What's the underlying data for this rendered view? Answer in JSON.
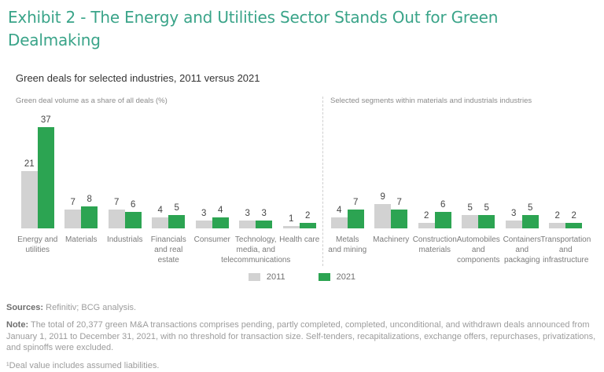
{
  "header": {
    "title": "Exhibit 2 - The Energy and Utilities Sector Stands Out for Green Dealmaking",
    "subtitle": "Green deals for selected industries, 2011 versus 2021"
  },
  "chart_data": {
    "type": "bar",
    "title": "Green deals for selected industries, 2011 versus 2021",
    "legend": [
      "2011",
      "2021"
    ],
    "colors": {
      "2011": "#d2d2d2",
      "2021": "#2ca452"
    },
    "ylim": [
      0,
      40
    ],
    "grid": false,
    "legend_position": "bottom-center",
    "panels": [
      {
        "label": "Green deal volume as a share of all deals (%)",
        "categories": [
          "Energy and utilities",
          "Materials",
          "Industrials",
          "Financials and real estate",
          "Consumer",
          "Technology, media, and telecommunications",
          "Health care"
        ],
        "category_label_lines": [
          "Energy and\nutilities",
          "Materials",
          "Industrials",
          "Financials\nand real\nestate",
          "Consumer",
          "Technology,\nmedia, and\ntelecommunications",
          "Health care"
        ],
        "series": [
          {
            "name": "2011",
            "values": [
              21,
              7,
              7,
              4,
              3,
              3,
              1
            ]
          },
          {
            "name": "2021",
            "values": [
              37,
              8,
              6,
              5,
              4,
              3,
              2
            ]
          }
        ]
      },
      {
        "label": "Selected segments within materials and industrials industries",
        "categories": [
          "Metals and mining",
          "Machinery",
          "Construction materials",
          "Automobiles and components",
          "Containers and packaging",
          "Transportation and infrastructure"
        ],
        "category_label_lines": [
          "Metals\nand mining",
          "Machinery",
          "Construction\nmaterials",
          "Automobiles\nand\ncomponents",
          "Containers\nand\npackaging",
          "Transportation\nand\ninfrastructure"
        ],
        "series": [
          {
            "name": "2011",
            "values": [
              4,
              9,
              2,
              5,
              3,
              2
            ]
          },
          {
            "name": "2021",
            "values": [
              7,
              7,
              6,
              5,
              5,
              2
            ]
          }
        ]
      }
    ]
  },
  "footer": {
    "sources_label": "Sources:",
    "sources_text": "Refinitiv; BCG analysis.",
    "note_label": "Note:",
    "note_text": "The total of 20,377 green M&A transactions comprises pending, partly completed, completed, unconditional, and withdrawn deals announced from January 1, 2011 to December 31, 2021, with no threshold for transaction size. Self-tenders, recapitalizations, exchange offers, repurchases, privatizations, and spinoffs were excluded.",
    "footnote": "¹Deal value includes assumed liabilities."
  }
}
